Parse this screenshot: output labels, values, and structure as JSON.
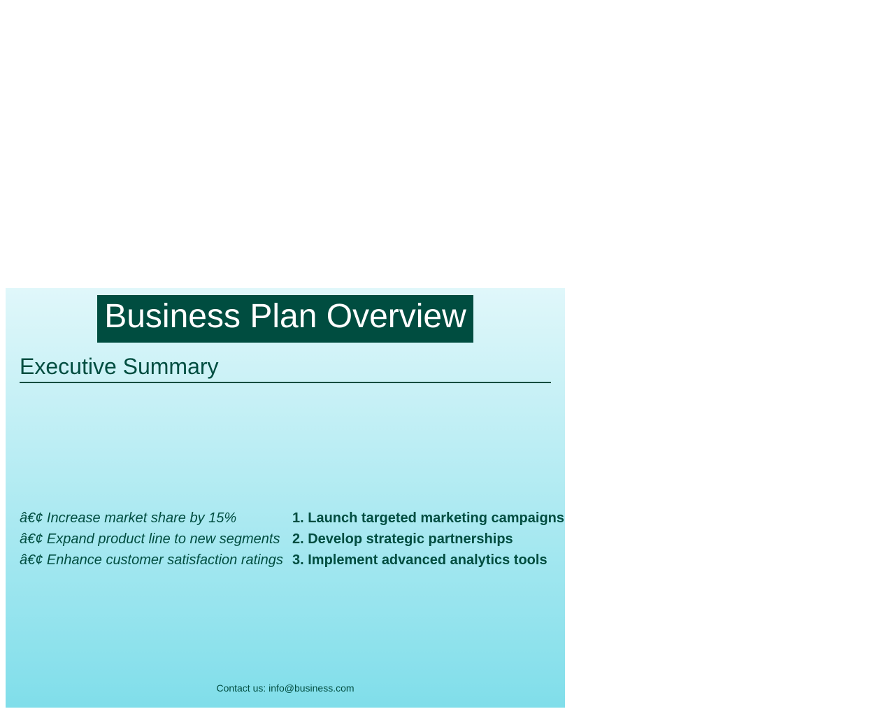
{
  "slide": {
    "title": "Business Plan Overview",
    "section_heading": "Executive Summary",
    "goals": [
      "â€¢ Increase market share by 15%",
      "â€¢ Expand product line to new segments",
      "â€¢ Enhance customer satisfaction ratings"
    ],
    "strategies": [
      "1. Launch targeted marketing campaigns",
      "2. Develop strategic partnerships",
      "3. Implement advanced analytics tools"
    ],
    "footer": "Contact us: info@business.com"
  },
  "colors": {
    "primary": "#004d40",
    "gradient_top": "#e0f7fa",
    "gradient_bottom": "#80deea",
    "title_text": "#ffffff"
  }
}
